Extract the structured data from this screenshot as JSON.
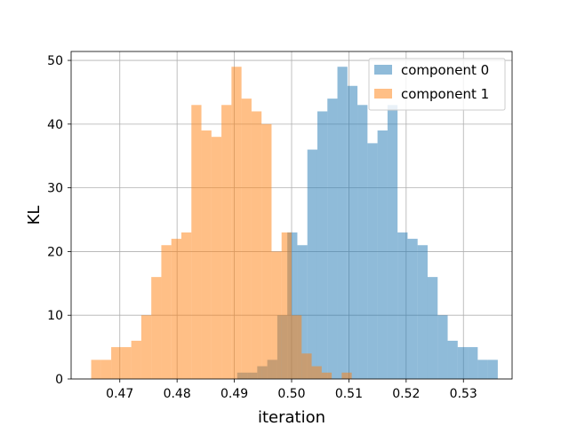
{
  "chart_data": {
    "type": "histogram",
    "xlabel": "iteration",
    "ylabel": "KL",
    "xlim": [
      0.4615,
      0.5385
    ],
    "ylim": [
      0,
      51.4
    ],
    "xticks": [
      0.47,
      0.48,
      0.49,
      0.5,
      0.51,
      0.52,
      0.53
    ],
    "xtick_labels": [
      "0.47",
      "0.48",
      "0.49",
      "0.50",
      "0.51",
      "0.52",
      "0.53"
    ],
    "yticks": [
      0,
      10,
      20,
      30,
      40,
      50
    ],
    "ytick_labels": [
      "0",
      "10",
      "20",
      "30",
      "40",
      "50"
    ],
    "grid": true,
    "legend_position": "top-right",
    "bin_width": 0.00175,
    "series": [
      {
        "name": "component 0",
        "color": "#1f77b4",
        "opacity": 0.5,
        "bin_start": 0.4905,
        "counts": [
          1,
          1,
          2,
          3,
          10,
          23,
          21,
          36,
          42,
          44,
          49,
          46,
          43,
          37,
          39,
          43,
          23,
          22,
          21,
          16,
          10,
          6,
          5,
          5,
          3,
          3
        ]
      },
      {
        "name": "component 1",
        "color": "#ff7f0e",
        "opacity": 0.5,
        "bin_start": 0.465,
        "counts": [
          3,
          3,
          5,
          5,
          6,
          10,
          16,
          21,
          22,
          23,
          43,
          39,
          38,
          43,
          49,
          44,
          42,
          40,
          20,
          23,
          10,
          4,
          2,
          1,
          0,
          1
        ]
      }
    ]
  }
}
